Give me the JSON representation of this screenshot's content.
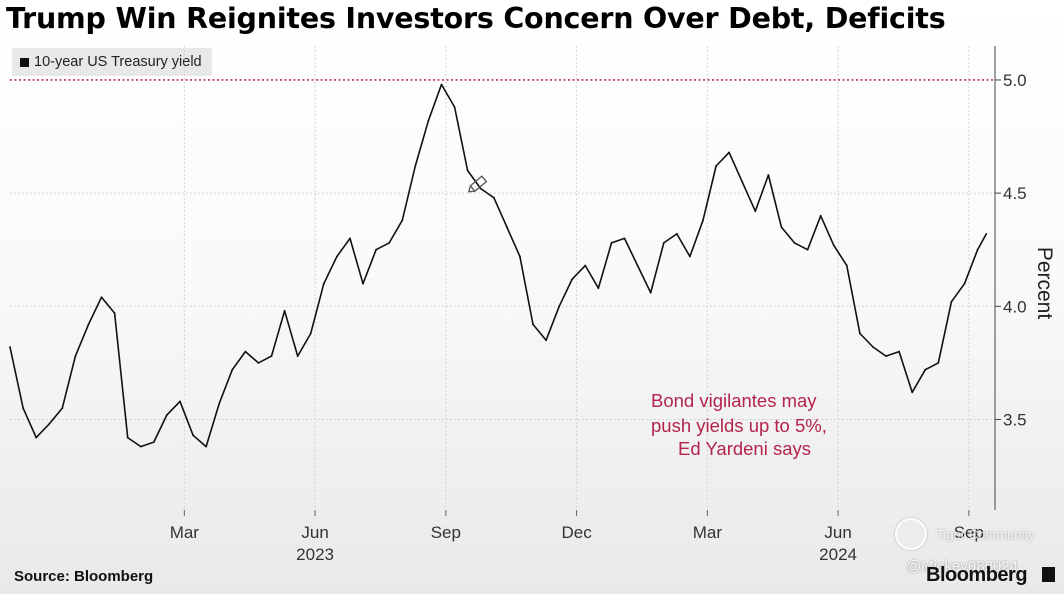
{
  "chart_data": {
    "type": "line",
    "title": "Trump Win Reignites Investors Concern Over Debt, Deficits",
    "legend": [
      {
        "label": "10-year US Treasury yield",
        "color": "#000000"
      }
    ],
    "ylabel": "Percent",
    "ylim": [
      3.1,
      5.15
    ],
    "yticks": [
      "5.0",
      "4.5",
      "4.0",
      "3.5"
    ],
    "yticks_values": [
      5.0,
      4.5,
      4.0,
      3.5
    ],
    "x_tick_labels": [
      "Mar",
      "Jun",
      "Sep",
      "Dec",
      "Mar",
      "Jun",
      "Sep"
    ],
    "x_year_labels": [
      "2023",
      "2024"
    ],
    "xlim": [
      0,
      22.6
    ],
    "reference_line": {
      "value": 5.0,
      "style": "dotted",
      "color": "#c0304e"
    },
    "annotation": {
      "lines": [
        "Bond vigilantes may",
        "push yields up to 5%,",
        "Ed Yardeni says"
      ],
      "color": "#b3244c"
    },
    "series": [
      {
        "name": "10-year US Treasury yield",
        "x": [
          0,
          0.3,
          0.6,
          0.9,
          1.2,
          1.5,
          1.8,
          2.1,
          2.4,
          2.7,
          3.0,
          3.3,
          3.6,
          3.9,
          4.2,
          4.5,
          4.8,
          5.1,
          5.4,
          5.7,
          6.0,
          6.3,
          6.6,
          6.9,
          7.2,
          7.5,
          7.8,
          8.1,
          8.4,
          8.7,
          9.0,
          9.3,
          9.6,
          9.9,
          10.2,
          10.5,
          10.8,
          11.1,
          11.4,
          11.7,
          12.0,
          12.3,
          12.6,
          12.9,
          13.2,
          13.5,
          13.8,
          14.1,
          14.4,
          14.7,
          15.0,
          15.3,
          15.6,
          15.9,
          16.2,
          16.5,
          16.8,
          17.1,
          17.4,
          17.7,
          18.0,
          18.3,
          18.6,
          18.9,
          19.2,
          19.5,
          19.8,
          20.1,
          20.4,
          20.7,
          21.0,
          21.3,
          21.6,
          21.9,
          22.2,
          22.4
        ],
        "values": [
          3.82,
          3.55,
          3.42,
          3.48,
          3.55,
          3.78,
          3.92,
          4.04,
          3.97,
          3.42,
          3.38,
          3.4,
          3.52,
          3.58,
          3.43,
          3.38,
          3.57,
          3.72,
          3.8,
          3.75,
          3.78,
          3.98,
          3.78,
          3.88,
          4.1,
          4.22,
          4.3,
          4.1,
          4.25,
          4.28,
          4.38,
          4.62,
          4.82,
          4.98,
          4.88,
          4.6,
          4.52,
          4.48,
          4.35,
          4.22,
          3.92,
          3.85,
          4.0,
          4.12,
          4.18,
          4.08,
          4.28,
          4.3,
          4.18,
          4.06,
          4.28,
          4.32,
          4.22,
          4.38,
          4.62,
          4.68,
          4.55,
          4.42,
          4.58,
          4.35,
          4.28,
          4.25,
          4.4,
          4.27,
          4.18,
          3.88,
          3.82,
          3.78,
          3.8,
          3.62,
          3.72,
          3.75,
          4.02,
          4.1,
          4.25,
          4.32
        ]
      }
    ]
  },
  "source": "Source: Bloomberg",
  "brand": "Bloomberg",
  "watermark": {
    "line1": "Tiger Community",
    "line2": "@Mickey082024"
  }
}
